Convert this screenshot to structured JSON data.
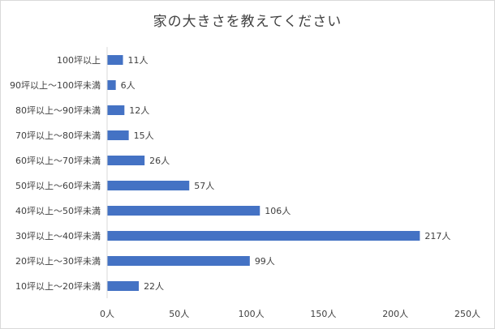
{
  "chart_data": {
    "type": "bar",
    "orientation": "horizontal",
    "title": "家の大きさを教えてください",
    "categories": [
      "100坪以上",
      "90坪以上～100坪未満",
      "80坪以上～90坪未満",
      "70坪以上～80坪未満",
      "60坪以上～70坪未満",
      "50坪以上～60坪未満",
      "40坪以上～50坪未満",
      "30坪以上～40坪未満",
      "20坪以上～30坪未満",
      "10坪以上～20坪未満"
    ],
    "values": [
      11,
      6,
      12,
      15,
      26,
      57,
      106,
      217,
      99,
      22
    ],
    "value_labels": [
      "11人",
      "6人",
      "12人",
      "15人",
      "26人",
      "57人",
      "106人",
      "217人",
      "99人",
      "22人"
    ],
    "xlim": [
      0,
      250
    ],
    "xticks": [
      0,
      50,
      100,
      150,
      200,
      250
    ],
    "xtick_labels": [
      "0人",
      "50人",
      "100人",
      "150人",
      "200人",
      "250人"
    ],
    "bar_color": "#4472c4",
    "grid": false,
    "legend": "none"
  }
}
